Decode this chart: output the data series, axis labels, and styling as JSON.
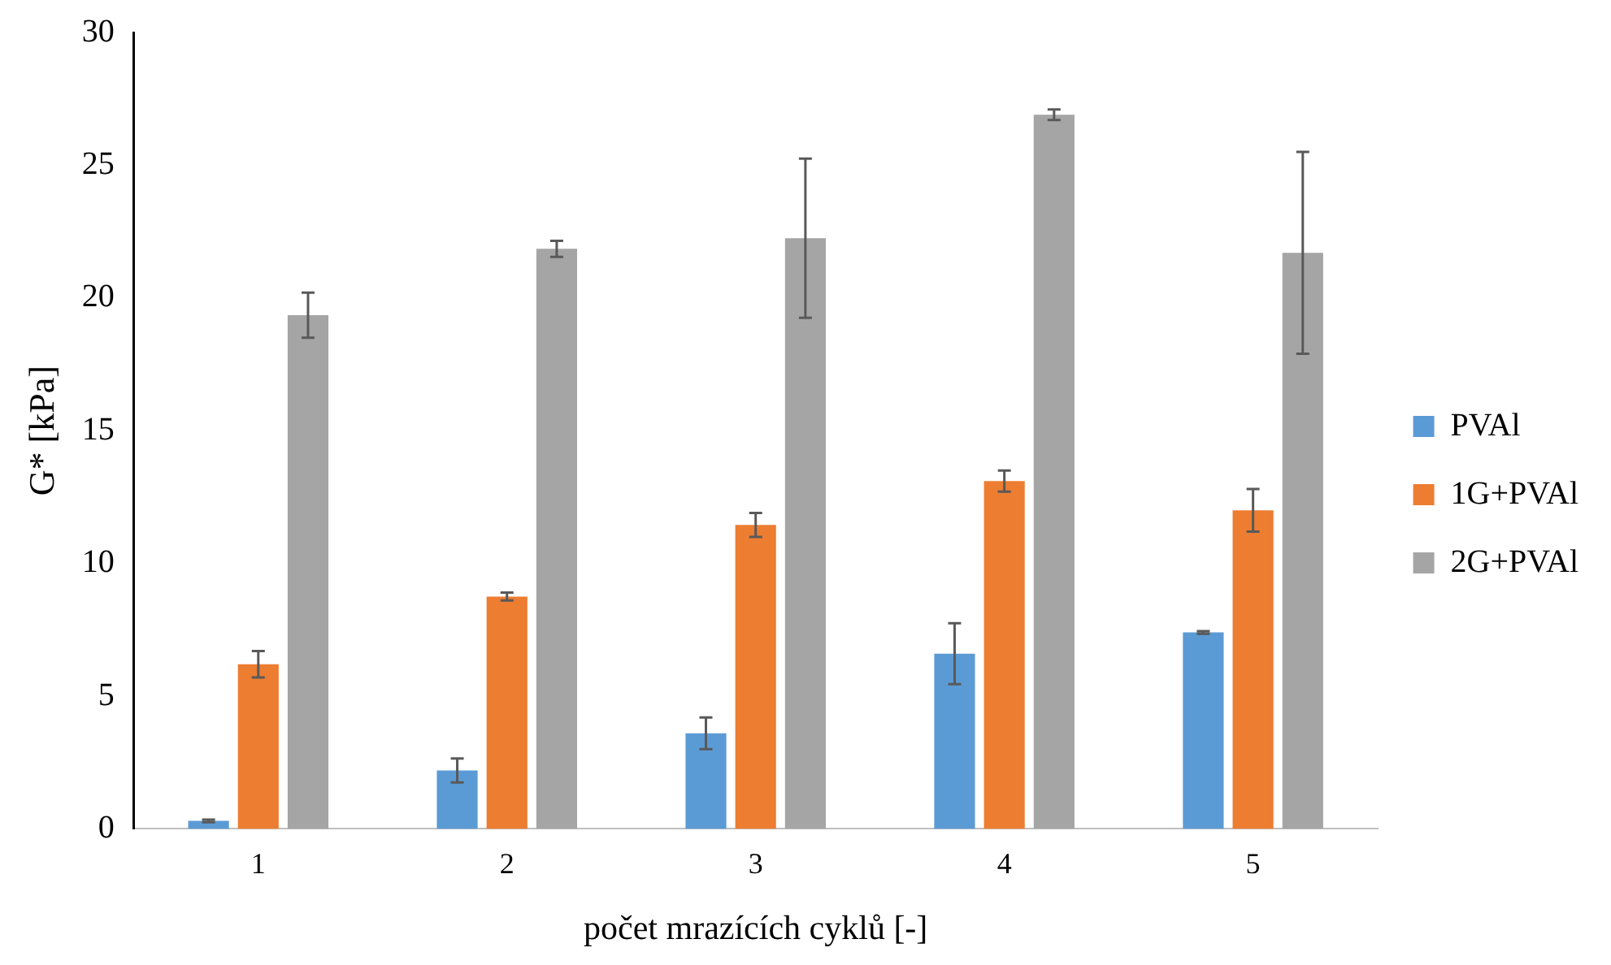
{
  "chart_data": {
    "type": "bar",
    "xlabel": "počet mrazících cyklů [-]",
    "ylabel": "G* [kPa]",
    "categories": [
      "1",
      "2",
      "3",
      "4",
      "5"
    ],
    "series": [
      {
        "name": "PVAl",
        "color": "#5b9bd5",
        "values": [
          0.3,
          2.2,
          3.6,
          6.6,
          7.4
        ],
        "errors": [
          0.05,
          0.45,
          0.6,
          1.15,
          0.05
        ]
      },
      {
        "name": "1G+PVAl",
        "color": "#ed7d31",
        "values": [
          6.2,
          8.75,
          11.45,
          13.1,
          12.0
        ],
        "errors": [
          0.5,
          0.15,
          0.45,
          0.4,
          0.8
        ]
      },
      {
        "name": "2G+PVAl",
        "color": "#a5a5a5",
        "values": [
          19.35,
          21.85,
          22.25,
          26.9,
          21.7
        ],
        "errors": [
          0.85,
          0.3,
          3.0,
          0.2,
          3.8
        ]
      }
    ],
    "ylim": [
      0,
      30
    ],
    "yticks": [
      0,
      5,
      10,
      15,
      20,
      25,
      30
    ],
    "grid": false,
    "legend": "right"
  }
}
